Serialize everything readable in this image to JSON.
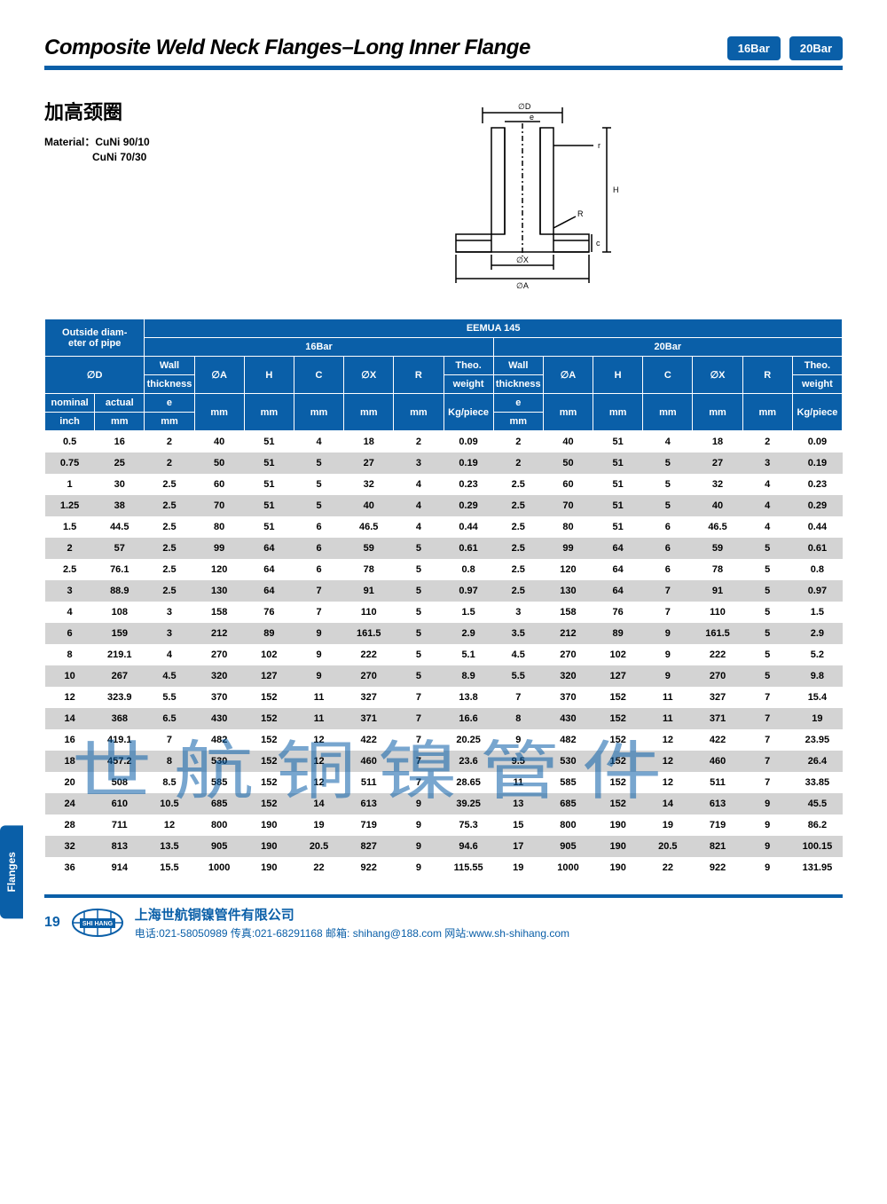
{
  "header": {
    "title": "Composite Weld Neck Flanges–Long Inner Flange",
    "badges": [
      "16Bar",
      "20Bar"
    ]
  },
  "subhead": {
    "cn_title": "加高颈圈",
    "material_label": "Material：",
    "materials": [
      "CuNi 90/10",
      "CuNi 70/30"
    ]
  },
  "diagram": {
    "labels": {
      "phiD": "∅D",
      "e": "e",
      "r": "r",
      "H": "H",
      "R": "R",
      "c": "c",
      "phiX": "∅X",
      "phiA": "∅A"
    }
  },
  "table": {
    "top_span": "EEMUA 145",
    "group_od": "Outside diam-\neter of pipe",
    "group_16": "16Bar",
    "group_20": "20Bar",
    "cols": {
      "od": "∅D",
      "nominal": "nominal",
      "actual": "actual",
      "inch": "inch",
      "mm": "mm",
      "wall": "Wall",
      "thickness": "thickness",
      "e": "e",
      "phiA": "∅A",
      "H": "H",
      "C": "C",
      "phiX": "∅X",
      "R": "R",
      "theo": "Theo.",
      "weight": "weight",
      "kgp": "Kg/piece"
    },
    "rows": [
      {
        "in": "0.5",
        "mm": "16",
        "e1": "2",
        "a1": "40",
        "h1": "51",
        "c1": "4",
        "x1": "18",
        "r1": "2",
        "w1": "0.09",
        "e2": "2",
        "a2": "40",
        "h2": "51",
        "c2": "4",
        "x2": "18",
        "r2": "2",
        "w2": "0.09"
      },
      {
        "in": "0.75",
        "mm": "25",
        "e1": "2",
        "a1": "50",
        "h1": "51",
        "c1": "5",
        "x1": "27",
        "r1": "3",
        "w1": "0.19",
        "e2": "2",
        "a2": "50",
        "h2": "51",
        "c2": "5",
        "x2": "27",
        "r2": "3",
        "w2": "0.19"
      },
      {
        "in": "1",
        "mm": "30",
        "e1": "2.5",
        "a1": "60",
        "h1": "51",
        "c1": "5",
        "x1": "32",
        "r1": "4",
        "w1": "0.23",
        "e2": "2.5",
        "a2": "60",
        "h2": "51",
        "c2": "5",
        "x2": "32",
        "r2": "4",
        "w2": "0.23"
      },
      {
        "in": "1.25",
        "mm": "38",
        "e1": "2.5",
        "a1": "70",
        "h1": "51",
        "c1": "5",
        "x1": "40",
        "r1": "4",
        "w1": "0.29",
        "e2": "2.5",
        "a2": "70",
        "h2": "51",
        "c2": "5",
        "x2": "40",
        "r2": "4",
        "w2": "0.29"
      },
      {
        "in": "1.5",
        "mm": "44.5",
        "e1": "2.5",
        "a1": "80",
        "h1": "51",
        "c1": "6",
        "x1": "46.5",
        "r1": "4",
        "w1": "0.44",
        "e2": "2.5",
        "a2": "80",
        "h2": "51",
        "c2": "6",
        "x2": "46.5",
        "r2": "4",
        "w2": "0.44"
      },
      {
        "in": "2",
        "mm": "57",
        "e1": "2.5",
        "a1": "99",
        "h1": "64",
        "c1": "6",
        "x1": "59",
        "r1": "5",
        "w1": "0.61",
        "e2": "2.5",
        "a2": "99",
        "h2": "64",
        "c2": "6",
        "x2": "59",
        "r2": "5",
        "w2": "0.61"
      },
      {
        "in": "2.5",
        "mm": "76.1",
        "e1": "2.5",
        "a1": "120",
        "h1": "64",
        "c1": "6",
        "x1": "78",
        "r1": "5",
        "w1": "0.8",
        "e2": "2.5",
        "a2": "120",
        "h2": "64",
        "c2": "6",
        "x2": "78",
        "r2": "5",
        "w2": "0.8"
      },
      {
        "in": "3",
        "mm": "88.9",
        "e1": "2.5",
        "a1": "130",
        "h1": "64",
        "c1": "7",
        "x1": "91",
        "r1": "5",
        "w1": "0.97",
        "e2": "2.5",
        "a2": "130",
        "h2": "64",
        "c2": "7",
        "x2": "91",
        "r2": "5",
        "w2": "0.97"
      },
      {
        "in": "4",
        "mm": "108",
        "e1": "3",
        "a1": "158",
        "h1": "76",
        "c1": "7",
        "x1": "110",
        "r1": "5",
        "w1": "1.5",
        "e2": "3",
        "a2": "158",
        "h2": "76",
        "c2": "7",
        "x2": "110",
        "r2": "5",
        "w2": "1.5"
      },
      {
        "in": "6",
        "mm": "159",
        "e1": "3",
        "a1": "212",
        "h1": "89",
        "c1": "9",
        "x1": "161.5",
        "r1": "5",
        "w1": "2.9",
        "e2": "3.5",
        "a2": "212",
        "h2": "89",
        "c2": "9",
        "x2": "161.5",
        "r2": "5",
        "w2": "2.9"
      },
      {
        "in": "8",
        "mm": "219.1",
        "e1": "4",
        "a1": "270",
        "h1": "102",
        "c1": "9",
        "x1": "222",
        "r1": "5",
        "w1": "5.1",
        "e2": "4.5",
        "a2": "270",
        "h2": "102",
        "c2": "9",
        "x2": "222",
        "r2": "5",
        "w2": "5.2"
      },
      {
        "in": "10",
        "mm": "267",
        "e1": "4.5",
        "a1": "320",
        "h1": "127",
        "c1": "9",
        "x1": "270",
        "r1": "5",
        "w1": "8.9",
        "e2": "5.5",
        "a2": "320",
        "h2": "127",
        "c2": "9",
        "x2": "270",
        "r2": "5",
        "w2": "9.8"
      },
      {
        "in": "12",
        "mm": "323.9",
        "e1": "5.5",
        "a1": "370",
        "h1": "152",
        "c1": "11",
        "x1": "327",
        "r1": "7",
        "w1": "13.8",
        "e2": "7",
        "a2": "370",
        "h2": "152",
        "c2": "11",
        "x2": "327",
        "r2": "7",
        "w2": "15.4"
      },
      {
        "in": "14",
        "mm": "368",
        "e1": "6.5",
        "a1": "430",
        "h1": "152",
        "c1": "11",
        "x1": "371",
        "r1": "7",
        "w1": "16.6",
        "e2": "8",
        "a2": "430",
        "h2": "152",
        "c2": "11",
        "x2": "371",
        "r2": "7",
        "w2": "19"
      },
      {
        "in": "16",
        "mm": "419.1",
        "e1": "7",
        "a1": "482",
        "h1": "152",
        "c1": "12",
        "x1": "422",
        "r1": "7",
        "w1": "20.25",
        "e2": "9",
        "a2": "482",
        "h2": "152",
        "c2": "12",
        "x2": "422",
        "r2": "7",
        "w2": "23.95"
      },
      {
        "in": "18",
        "mm": "457.2",
        "e1": "8",
        "a1": "530",
        "h1": "152",
        "c1": "12",
        "x1": "460",
        "r1": "7",
        "w1": "23.6",
        "e2": "9.5",
        "a2": "530",
        "h2": "152",
        "c2": "12",
        "x2": "460",
        "r2": "7",
        "w2": "26.4"
      },
      {
        "in": "20",
        "mm": "508",
        "e1": "8.5",
        "a1": "585",
        "h1": "152",
        "c1": "12",
        "x1": "511",
        "r1": "7",
        "w1": "28.65",
        "e2": "11",
        "a2": "585",
        "h2": "152",
        "c2": "12",
        "x2": "511",
        "r2": "7",
        "w2": "33.85"
      },
      {
        "in": "24",
        "mm": "610",
        "e1": "10.5",
        "a1": "685",
        "h1": "152",
        "c1": "14",
        "x1": "613",
        "r1": "9",
        "w1": "39.25",
        "e2": "13",
        "a2": "685",
        "h2": "152",
        "c2": "14",
        "x2": "613",
        "r2": "9",
        "w2": "45.5"
      },
      {
        "in": "28",
        "mm": "711",
        "e1": "12",
        "a1": "800",
        "h1": "190",
        "c1": "19",
        "x1": "719",
        "r1": "9",
        "w1": "75.3",
        "e2": "15",
        "a2": "800",
        "h2": "190",
        "c2": "19",
        "x2": "719",
        "r2": "9",
        "w2": "86.2"
      },
      {
        "in": "32",
        "mm": "813",
        "e1": "13.5",
        "a1": "905",
        "h1": "190",
        "c1": "20.5",
        "x1": "827",
        "r1": "9",
        "w1": "94.6",
        "e2": "17",
        "a2": "905",
        "h2": "190",
        "c2": "20.5",
        "x2": "821",
        "r2": "9",
        "w2": "100.15"
      },
      {
        "in": "36",
        "mm": "914",
        "e1": "15.5",
        "a1": "1000",
        "h1": "190",
        "c1": "22",
        "x1": "922",
        "r1": "9",
        "w1": "115.55",
        "e2": "19",
        "a2": "1000",
        "h2": "190",
        "c2": "22",
        "x2": "922",
        "r2": "9",
        "w2": "131.95"
      }
    ]
  },
  "side_tab": "Flanges",
  "watermark": "世航铜镍管件",
  "footer": {
    "page": "19",
    "company": "上海世航铜镍管件有限公司",
    "contact": "电话:021-58050989  传真:021-68291168  邮箱: shihang@188.com  网站:www.sh-shihang.com",
    "logo_text": "SHI HANG"
  },
  "colors": {
    "brand": "#0a5fa8",
    "row_alt": "#d3d3d3"
  }
}
